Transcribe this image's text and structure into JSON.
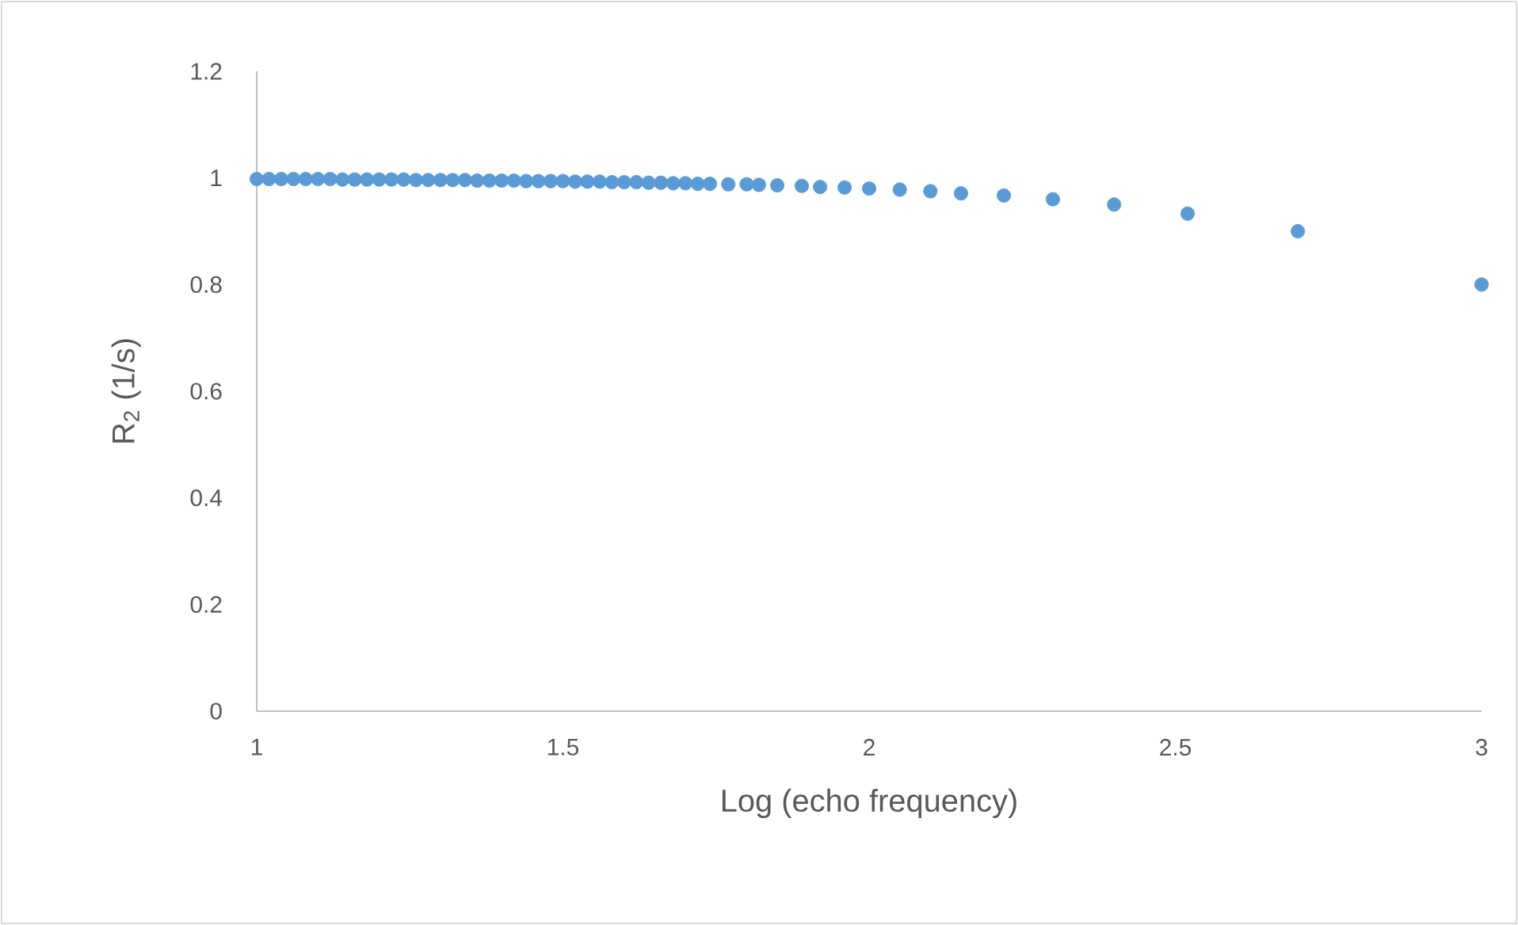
{
  "chart_data": {
    "type": "scatter",
    "xlabel": "Log (echo frequency)",
    "ylabel": "R$_{2}$ (1/s)",
    "x": [
      3.0,
      2.7,
      2.52,
      2.4,
      2.3,
      2.22,
      2.15,
      2.1,
      2.05,
      2.0,
      1.96,
      1.92,
      1.89,
      1.85,
      1.82,
      1.8,
      1.77,
      1.74,
      1.72,
      1.7,
      1.68,
      1.66,
      1.64,
      1.62,
      1.6,
      1.58,
      1.56,
      1.54,
      1.52,
      1.5,
      1.48,
      1.46,
      1.44,
      1.42,
      1.4,
      1.38,
      1.36,
      1.34,
      1.32,
      1.3,
      1.28,
      1.26,
      1.24,
      1.22,
      1.2,
      1.18,
      1.16,
      1.14,
      1.12,
      1.1,
      1.08,
      1.06,
      1.04,
      1.02,
      1.0
    ],
    "series": [
      {
        "color": "#5b9bd5",
        "values": [
          0.8,
          0.9,
          0.933,
          0.95,
          0.96,
          0.967,
          0.971,
          0.975,
          0.978,
          0.98,
          0.982,
          0.983,
          0.985,
          0.986,
          0.987,
          0.988,
          0.988,
          0.989,
          0.989,
          0.99,
          0.99,
          0.991,
          0.991,
          0.992,
          0.992,
          0.992,
          0.993,
          0.993,
          0.993,
          0.994,
          0.994,
          0.994,
          0.994,
          0.995,
          0.995,
          0.995,
          0.995,
          0.996,
          0.996,
          0.996,
          0.996,
          0.996,
          0.997,
          0.997,
          0.997,
          0.997,
          0.997,
          0.997,
          0.998,
          0.998,
          0.998,
          0.998,
          0.998,
          0.998,
          0.998
        ]
      }
    ],
    "xlim": [
      1,
      3
    ],
    "ylim": [
      0,
      1.2
    ],
    "xticks": [
      1,
      1.5,
      2,
      2.5,
      3
    ],
    "yticks": [
      0,
      0.2,
      0.4,
      0.6,
      0.8,
      1,
      1.2
    ],
    "marker": "circle"
  }
}
